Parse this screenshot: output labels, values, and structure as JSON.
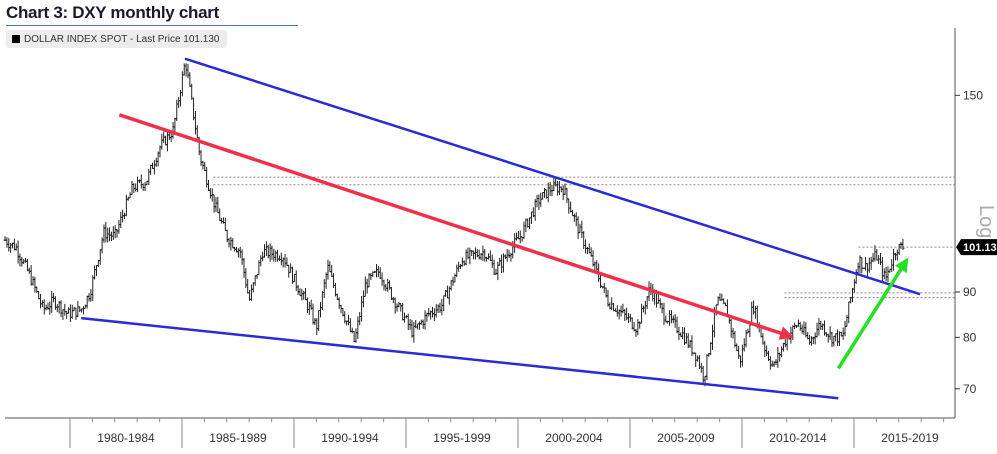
{
  "title": "Chart 3: DXY monthly chart",
  "chart_data": {
    "type": "line",
    "title": "Chart 3: DXY monthly chart",
    "legend": {
      "label": "DOLLAR INDEX SPOT - Last Price 101.130",
      "placement": "top-left"
    },
    "series_name": "DOLLAR INDEX SPOT",
    "last_price": 101.13,
    "last_price_label": "101.13",
    "scale": "Log",
    "ylim": [
      66,
      185
    ],
    "xlim": [
      1977.1,
      2019.6
    ],
    "y_ticks": [
      {
        "value": 150,
        "label": "150"
      },
      {
        "value": 90,
        "label": "90"
      },
      {
        "value": 80,
        "label": "80"
      },
      {
        "value": 70,
        "label": "70"
      }
    ],
    "x_period_bounds": [
      1980,
      1985,
      1990,
      1995,
      2000,
      2005,
      2010,
      2015,
      2020
    ],
    "x_tick_labels": [
      "1980-1984",
      "1985-1989",
      "1990-1994",
      "1995-1999",
      "2000-2004",
      "2005-2009",
      "2010-2014",
      "2015-2019"
    ],
    "series": [
      {
        "name": "DXY",
        "points": [
          [
            1977.1,
            103
          ],
          [
            1977.6,
            101
          ],
          [
            1978.2,
            94
          ],
          [
            1978.8,
            86
          ],
          [
            1979.3,
            88
          ],
          [
            1979.9,
            85
          ],
          [
            1980.5,
            86
          ],
          [
            1980.9,
            90
          ],
          [
            1981.5,
            105
          ],
          [
            1982.0,
            104
          ],
          [
            1982.8,
            118
          ],
          [
            1983.4,
            120
          ],
          [
            1984.0,
            131
          ],
          [
            1984.6,
            137
          ],
          [
            1985.15,
            164
          ],
          [
            1985.8,
            128
          ],
          [
            1986.5,
            112
          ],
          [
            1987.0,
            104
          ],
          [
            1987.6,
            100
          ],
          [
            1988.0,
            88
          ],
          [
            1988.6,
            100
          ],
          [
            1989.5,
            99
          ],
          [
            1990.0,
            93
          ],
          [
            1990.7,
            86
          ],
          [
            1991.0,
            82
          ],
          [
            1991.5,
            96
          ],
          [
            1992.0,
            88
          ],
          [
            1992.7,
            79
          ],
          [
            1993.2,
            92
          ],
          [
            1993.8,
            95
          ],
          [
            1994.5,
            88
          ],
          [
            1995.3,
            81
          ],
          [
            1996.0,
            85
          ],
          [
            1996.6,
            87
          ],
          [
            1997.5,
            98
          ],
          [
            1998.5,
            100
          ],
          [
            1999.0,
            95
          ],
          [
            1999.6,
            100
          ],
          [
            2000.1,
            104
          ],
          [
            2000.9,
            114
          ],
          [
            2001.5,
            118
          ],
          [
            2002.0,
            118
          ],
          [
            2002.7,
            106
          ],
          [
            2003.5,
            95
          ],
          [
            2004.0,
            88
          ],
          [
            2004.9,
            84
          ],
          [
            2005.3,
            82
          ],
          [
            2005.9,
            91
          ],
          [
            2006.5,
            85
          ],
          [
            2007.3,
            81
          ],
          [
            2008.0,
            76
          ],
          [
            2008.3,
            72
          ],
          [
            2008.9,
            88
          ],
          [
            2009.3,
            86
          ],
          [
            2009.9,
            75
          ],
          [
            2010.5,
            87
          ],
          [
            2011.0,
            78
          ],
          [
            2011.4,
            74
          ],
          [
            2012.0,
            80
          ],
          [
            2012.5,
            83
          ],
          [
            2013.0,
            79
          ],
          [
            2013.5,
            83
          ],
          [
            2014.0,
            80
          ],
          [
            2014.5,
            80
          ],
          [
            2015.2,
            98
          ],
          [
            2015.5,
            96
          ],
          [
            2016.0,
            99
          ],
          [
            2016.4,
            93
          ],
          [
            2016.9,
            101
          ],
          [
            2017.2,
            101.13
          ]
        ]
      }
    ],
    "annotations": {
      "trendlines": [
        {
          "name": "upper-blue-trendline",
          "color": "#2b2bd6",
          "from": [
            1985.13,
            165
          ],
          "to": [
            2017.95,
            89.5
          ]
        },
        {
          "name": "lower-blue-trendline",
          "color": "#2b2bd6",
          "from": [
            1980.5,
            84.1
          ],
          "to": [
            2014.3,
            68.3
          ]
        },
        {
          "name": "red-downtrend-arrow",
          "color": "#f0304a",
          "from": [
            1982.2,
            142.6
          ],
          "to": [
            2012.1,
            80.3
          ],
          "arrow": true
        },
        {
          "name": "green-uptrend-arrow",
          "color": "#22e022",
          "from": [
            2014.3,
            73.8
          ],
          "to": [
            2017.3,
            97.3
          ],
          "arrow": true
        }
      ],
      "levels": [
        {
          "value": 121.3,
          "from": 1986.4
        },
        {
          "value": 118.9,
          "from": 1986.4
        },
        {
          "value": 101.13,
          "from": 2015.2
        },
        {
          "value": 89.8,
          "from": 2011.9
        },
        {
          "value": 88.7,
          "from": 2011.9
        }
      ]
    }
  }
}
